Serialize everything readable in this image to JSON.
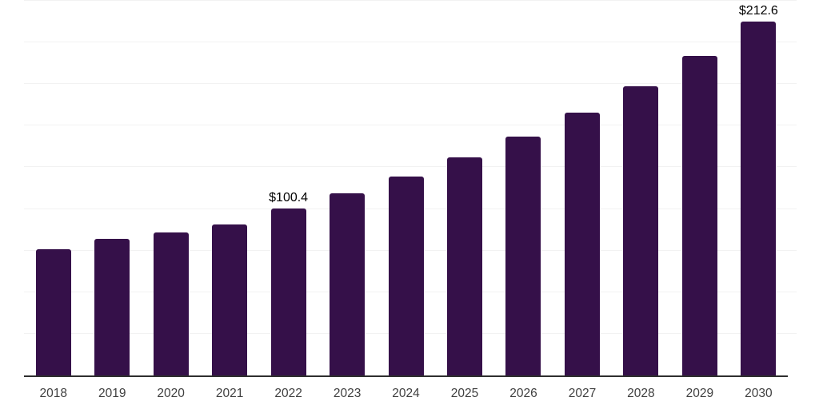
{
  "chart_data": {
    "type": "bar",
    "title": "",
    "xlabel": "",
    "ylabel": "",
    "categories": [
      "2018",
      "2019",
      "2020",
      "2021",
      "2022",
      "2023",
      "2024",
      "2025",
      "2026",
      "2027",
      "2028",
      "2029",
      "2030"
    ],
    "values": [
      75.7,
      82.0,
      85.9,
      90.7,
      100.4,
      109.5,
      119.5,
      130.9,
      143.3,
      157.8,
      173.7,
      192.1,
      212.6
    ],
    "annotations": [
      {
        "category": "2022",
        "text": "$100.4"
      },
      {
        "category": "2030",
        "text": "$212.6"
      }
    ],
    "ylim": [
      0,
      225.5
    ],
    "grid_step": 25,
    "grid": "horizontal-only",
    "legend": "none",
    "y_axis_labels_visible": false,
    "colors": {
      "bar": "#351049",
      "gridline": "#f2f2f2",
      "axis_line": "#2e2e2e",
      "tick_label": "#404040",
      "annotation": "#000000",
      "background": "#ffffff"
    }
  }
}
